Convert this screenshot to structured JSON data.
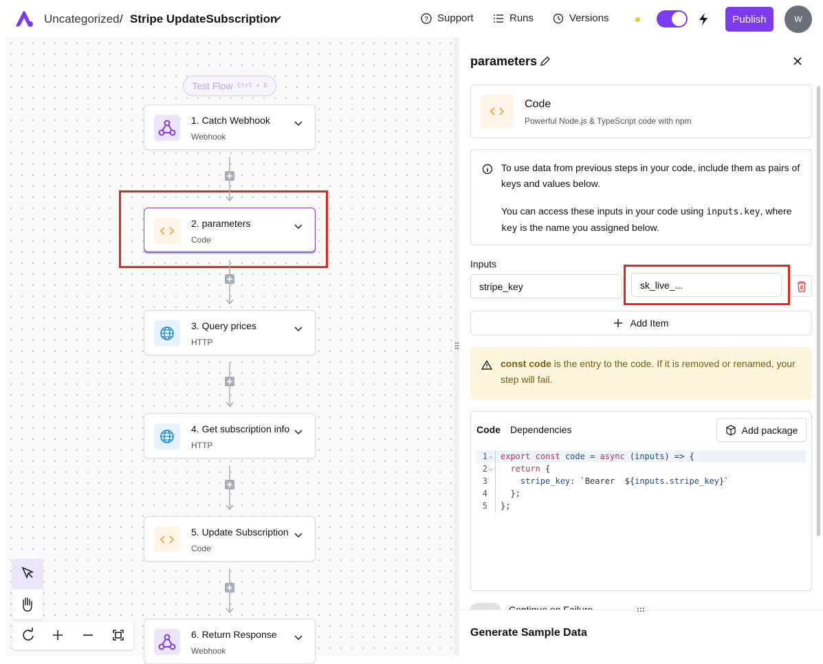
{
  "header": {
    "folder": "Uncategorized",
    "separator": "/",
    "flow_name": "Stripe UpdateSubscription",
    "nav": [
      "Support",
      "Runs",
      "Versions"
    ],
    "publish": "Publish",
    "avatar": "W"
  },
  "canvas": {
    "test_flow": "Test Flow",
    "shortcut": "Ctrl + D",
    "steps": [
      {
        "title": "1. Catch Webhook",
        "subtitle": "Webhook",
        "icon": "webhook"
      },
      {
        "title": "2. parameters",
        "subtitle": "Code",
        "icon": "code"
      },
      {
        "title": "3. Query prices",
        "subtitle": "HTTP",
        "icon": "http"
      },
      {
        "title": "4. Get subscription info",
        "subtitle": "HTTP",
        "icon": "http"
      },
      {
        "title": "5. Update Subscription",
        "subtitle": "Code",
        "icon": "code"
      },
      {
        "title": "6. Return Response",
        "subtitle": "Webhook",
        "icon": "webhook"
      }
    ]
  },
  "panel": {
    "title": "parameters",
    "piece": {
      "name": "Code",
      "description": "Powerful Node.js & TypeScript code with npm"
    },
    "info": {
      "first": "To use data from previous steps in your code, include them as pairs of keys and values below.",
      "second": [
        "You can access these inputs in your code using ",
        "inputs.key",
        ", where ",
        "key",
        " is the name you assigned below."
      ]
    },
    "inputs_label": "Inputs",
    "inputs": [
      {
        "key": "stripe_key",
        "value": "sk_live_..."
      }
    ],
    "add_item": "Add Item",
    "warning": {
      "bold": "const code",
      "text": " is the entry to the code. If it is removed or renamed, your step will fail."
    },
    "tabs": [
      "Code",
      "Dependencies"
    ],
    "add_package": "Add package",
    "code": [
      {
        "number": 1,
        "tokens": [
          {
            "text": "export",
            "kind": "kw"
          },
          {
            "text": " ",
            "kind": "pl"
          },
          {
            "text": "const",
            "kind": "kw"
          },
          {
            "text": " ",
            "kind": "pl"
          },
          {
            "text": "code",
            "kind": "id"
          },
          {
            "text": " = ",
            "kind": "pl"
          },
          {
            "text": "async",
            "kind": "kw"
          },
          {
            "text": " (",
            "kind": "pl"
          },
          {
            "text": "inputs",
            "kind": "id"
          },
          {
            "text": ") => {",
            "kind": "pl"
          }
        ]
      },
      {
        "number": 2,
        "tokens": [
          {
            "text": "  return",
            "kind": "kw"
          },
          {
            "text": " {",
            "kind": "pl"
          }
        ]
      },
      {
        "number": 3,
        "tokens": [
          {
            "text": "    stripe_key",
            "kind": "id"
          },
          {
            "text": ": ",
            "kind": "pl"
          },
          {
            "text": "`Bearer  ${",
            "kind": "pl"
          },
          {
            "text": "inputs.stripe_key",
            "kind": "id"
          },
          {
            "text": "}`",
            "kind": "pl"
          }
        ]
      },
      {
        "number": 4,
        "tokens": [
          {
            "text": "  };",
            "kind": "pl"
          }
        ]
      },
      {
        "number": 5,
        "tokens": [
          {
            "text": "};",
            "kind": "pl"
          }
        ]
      }
    ],
    "continue_on_failure": "Continue on Failure",
    "generate_sample": "Generate Sample Data"
  }
}
